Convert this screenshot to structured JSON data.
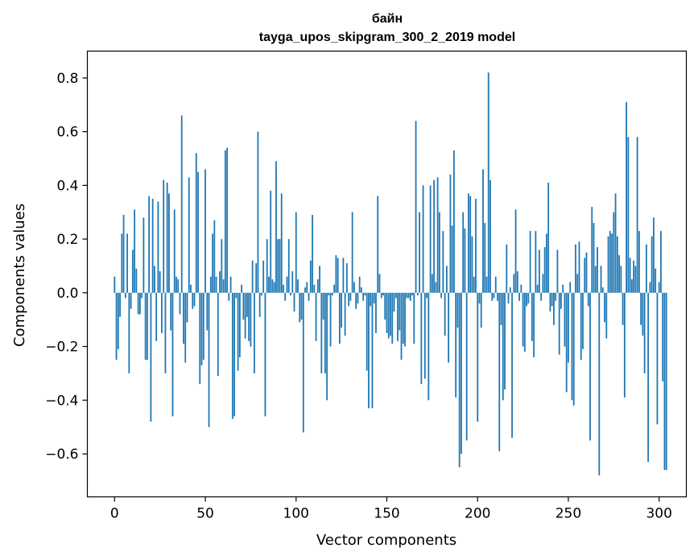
{
  "chart_data": {
    "type": "bar",
    "title_line1": "байн",
    "title_line2": "tayga_upos_skipgram_300_2_2019 model",
    "xlabel": "Vector components",
    "ylabel": "Components values",
    "xlim": [
      -15,
      315
    ],
    "ylim": [
      -0.76,
      0.9
    ],
    "x_ticks": [
      0,
      50,
      100,
      150,
      200,
      250,
      300
    ],
    "x_tick_labels": [
      "0",
      "50",
      "100",
      "150",
      "200",
      "250",
      "300"
    ],
    "y_ticks": [
      -0.6,
      -0.4,
      -0.2,
      0.0,
      0.2,
      0.4,
      0.6,
      0.8
    ],
    "y_tick_labels": [
      "−0.6",
      "−0.4",
      "−0.2",
      "0.0",
      "0.2",
      "0.4",
      "0.6",
      "0.8"
    ],
    "bar_color": "#1f77b4",
    "values": [
      0.06,
      -0.25,
      -0.21,
      -0.09,
      0.22,
      0.29,
      -0.02,
      0.22,
      -0.3,
      -0.06,
      0.16,
      0.31,
      0.09,
      -0.08,
      -0.08,
      -0.02,
      0.28,
      -0.25,
      -0.25,
      0.36,
      -0.48,
      0.35,
      0.1,
      -0.18,
      0.34,
      0.08,
      -0.15,
      0.42,
      -0.3,
      0.41,
      0.37,
      -0.14,
      -0.46,
      0.31,
      0.06,
      0.05,
      -0.08,
      0.66,
      -0.19,
      -0.26,
      -0.11,
      0.43,
      0.03,
      -0.06,
      -0.05,
      0.52,
      0.45,
      -0.34,
      -0.27,
      -0.25,
      0.46,
      -0.14,
      -0.5,
      0.06,
      0.22,
      0.27,
      0.06,
      -0.31,
      0.08,
      0.2,
      0.05,
      0.53,
      0.54,
      -0.03,
      0.06,
      -0.47,
      -0.46,
      -0.02,
      -0.29,
      -0.24,
      0.03,
      -0.1,
      -0.17,
      -0.09,
      -0.18,
      -0.2,
      0.12,
      -0.3,
      0.11,
      0.6,
      -0.09,
      -0.01,
      0.12,
      -0.46,
      0.2,
      0.06,
      0.38,
      0.05,
      0.04,
      0.49,
      0.2,
      0.2,
      0.37,
      0.03,
      -0.03,
      0.06,
      0.2,
      -0.01,
      0.08,
      -0.07,
      0.3,
      0.05,
      -0.11,
      -0.1,
      -0.52,
      0.02,
      0.04,
      -0.03,
      0.12,
      0.29,
      0.03,
      -0.18,
      0.05,
      0.1,
      -0.3,
      -0.1,
      -0.3,
      -0.4,
      -0.01,
      -0.2,
      -0.01,
      0.03,
      0.14,
      0.13,
      -0.19,
      -0.13,
      0.13,
      -0.16,
      0.11,
      -0.05,
      -0.03,
      0.3,
      0.04,
      -0.06,
      -0.04,
      0.06,
      0.02,
      -0.03,
      -0.01,
      -0.29,
      -0.43,
      -0.05,
      -0.43,
      -0.04,
      -0.15,
      0.36,
      0.07,
      -0.02,
      -0.01,
      -0.1,
      -0.15,
      -0.17,
      -0.16,
      -0.19,
      -0.07,
      -0.02,
      -0.18,
      -0.14,
      -0.25,
      -0.19,
      -0.2,
      -0.02,
      -0.02,
      -0.03,
      -0.01,
      -0.19,
      0.64,
      -0.01,
      0.3,
      -0.34,
      0.4,
      -0.32,
      -0.02,
      -0.4,
      0.4,
      0.07,
      0.42,
      0.04,
      0.43,
      0.3,
      -0.02,
      0.23,
      -0.16,
      0.1,
      -0.26,
      0.44,
      0.25,
      0.53,
      -0.39,
      -0.13,
      -0.65,
      -0.6,
      0.3,
      0.24,
      -0.55,
      0.37,
      0.36,
      0.21,
      0.06,
      0.35,
      -0.48,
      -0.04,
      -0.13,
      0.46,
      0.26,
      0.06,
      0.82,
      0.42,
      -0.03,
      -0.02,
      0.06,
      -0.03,
      -0.59,
      -0.12,
      -0.4,
      -0.36,
      0.18,
      -0.04,
      0.02,
      -0.54,
      0.07,
      0.31,
      0.08,
      -0.03,
      0.03,
      -0.2,
      -0.22,
      -0.05,
      -0.04,
      0.23,
      -0.18,
      -0.24,
      0.23,
      0.03,
      0.16,
      -0.03,
      0.07,
      0.17,
      0.22,
      0.41,
      -0.07,
      -0.05,
      -0.12,
      -0.03,
      0.16,
      -0.23,
      -0.06,
      0.03,
      -0.2,
      -0.37,
      -0.26,
      0.04,
      -0.4,
      -0.42,
      0.18,
      0.07,
      0.19,
      -0.25,
      -0.21,
      0.13,
      0.15,
      -0.05,
      -0.55,
      0.32,
      0.26,
      0.1,
      0.17,
      -0.68,
      0.1,
      0.02,
      -0.11,
      -0.17,
      0.21,
      0.23,
      0.22,
      0.3,
      0.37,
      0.21,
      0.14,
      0.1,
      -0.12,
      -0.39,
      0.71,
      0.58,
      0.13,
      0.05,
      0.12,
      0.1,
      0.58,
      0.23,
      -0.12,
      -0.16,
      -0.3,
      0.18,
      -0.63,
      0.04,
      0.21,
      0.28,
      0.09,
      -0.49,
      0.04,
      0.23,
      -0.33,
      -0.66,
      -0.66
    ]
  }
}
